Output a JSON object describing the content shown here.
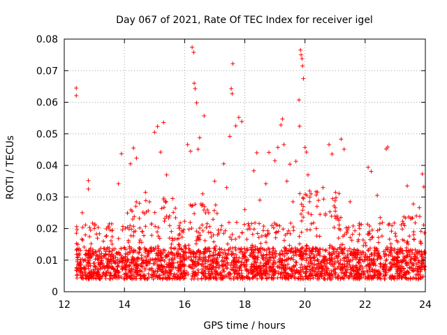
{
  "chart_data": {
    "type": "scatter",
    "title": "Day 067 of 2021, Rate Of TEC Index for receiver igel",
    "xlabel": "GPS time / hours",
    "ylabel": "ROTI / TECUs",
    "xlim": [
      12,
      24
    ],
    "ylim": [
      0,
      0.08
    ],
    "x_ticks": [
      12,
      14,
      16,
      18,
      20,
      22,
      24
    ],
    "x_tick_labels": [
      "12",
      "14",
      "16",
      "18",
      "20",
      "22",
      "24"
    ],
    "y_ticks": [
      0,
      0.01,
      0.02,
      0.03,
      0.04,
      0.05,
      0.06,
      0.07,
      0.08
    ],
    "y_tick_labels": [
      "0",
      "0.01",
      "0.02",
      "0.03",
      "0.04",
      "0.05",
      "0.06",
      "0.07",
      "0.08"
    ],
    "grid": true,
    "marker": "+",
    "color": "#ff0000",
    "series": [
      {
        "name": "ROTI",
        "points": [
          [
            12.4,
            0.0645
          ],
          [
            12.4,
            0.0621
          ],
          [
            12.45,
            0.015
          ],
          [
            12.5,
            0.012
          ],
          [
            12.6,
            0.025
          ],
          [
            12.7,
            0.018
          ],
          [
            12.8,
            0.0352
          ],
          [
            12.8,
            0.0325
          ],
          [
            12.9,
            0.011
          ],
          [
            13.0,
            0.02
          ],
          [
            13.2,
            0.009
          ],
          [
            13.3,
            0.016
          ],
          [
            13.5,
            0.0215
          ],
          [
            13.6,
            0.013
          ],
          [
            13.8,
            0.0342
          ],
          [
            13.9,
            0.0437
          ],
          [
            14.0,
            0.014
          ],
          [
            14.1,
            0.0249
          ],
          [
            14.2,
            0.0405
          ],
          [
            14.3,
            0.0455
          ],
          [
            14.4,
            0.0423
          ],
          [
            14.5,
            0.028
          ],
          [
            14.6,
            0.019
          ],
          [
            14.7,
            0.0315
          ],
          [
            14.8,
            0.012
          ],
          [
            15.0,
            0.0505
          ],
          [
            15.1,
            0.0523
          ],
          [
            15.2,
            0.0442
          ],
          [
            15.3,
            0.0536
          ],
          [
            15.4,
            0.037
          ],
          [
            15.5,
            0.024
          ],
          [
            15.6,
            0.0295
          ],
          [
            15.8,
            0.015
          ],
          [
            16.0,
            0.0223
          ],
          [
            16.1,
            0.0466
          ],
          [
            16.2,
            0.0445
          ],
          [
            16.25,
            0.0774
          ],
          [
            16.3,
            0.0758
          ],
          [
            16.32,
            0.066
          ],
          [
            16.35,
            0.0643
          ],
          [
            16.4,
            0.0598
          ],
          [
            16.45,
            0.0451
          ],
          [
            16.5,
            0.0488
          ],
          [
            16.6,
            0.031
          ],
          [
            16.65,
            0.0557
          ],
          [
            16.8,
            0.025
          ],
          [
            17.0,
            0.035
          ],
          [
            17.1,
            0.018
          ],
          [
            17.3,
            0.0405
          ],
          [
            17.4,
            0.033
          ],
          [
            17.5,
            0.0492
          ],
          [
            17.55,
            0.0643
          ],
          [
            17.58,
            0.0627
          ],
          [
            17.6,
            0.0722
          ],
          [
            17.7,
            0.0525
          ],
          [
            17.8,
            0.0552
          ],
          [
            17.9,
            0.0539
          ],
          [
            18.0,
            0.026
          ],
          [
            18.2,
            0.014
          ],
          [
            18.3,
            0.0383
          ],
          [
            18.4,
            0.044
          ],
          [
            18.5,
            0.029
          ],
          [
            18.7,
            0.0342
          ],
          [
            18.8,
            0.0441
          ],
          [
            18.9,
            0.021
          ],
          [
            19.0,
            0.0415
          ],
          [
            19.1,
            0.0457
          ],
          [
            19.2,
            0.0528
          ],
          [
            19.25,
            0.0547
          ],
          [
            19.3,
            0.0466
          ],
          [
            19.4,
            0.035
          ],
          [
            19.5,
            0.0404
          ],
          [
            19.6,
            0.0285
          ],
          [
            19.7,
            0.0413
          ],
          [
            19.8,
            0.0607
          ],
          [
            19.82,
            0.0524
          ],
          [
            19.85,
            0.0765
          ],
          [
            19.87,
            0.075
          ],
          [
            19.9,
            0.0738
          ],
          [
            19.92,
            0.0715
          ],
          [
            19.95,
            0.0675
          ],
          [
            20.0,
            0.0457
          ],
          [
            20.05,
            0.0442
          ],
          [
            20.1,
            0.037
          ],
          [
            20.2,
            0.031
          ],
          [
            20.4,
            0.027
          ],
          [
            20.5,
            0.0245
          ],
          [
            20.6,
            0.033
          ],
          [
            20.8,
            0.0466
          ],
          [
            20.9,
            0.0436
          ],
          [
            21.0,
            0.0288
          ],
          [
            21.2,
            0.0483
          ],
          [
            21.3,
            0.0451
          ],
          [
            21.5,
            0.0285
          ],
          [
            21.6,
            0.0208
          ],
          [
            21.8,
            0.021
          ],
          [
            22.0,
            0.0155
          ],
          [
            22.1,
            0.0394
          ],
          [
            22.2,
            0.0381
          ],
          [
            22.4,
            0.0305
          ],
          [
            22.5,
            0.0235
          ],
          [
            22.7,
            0.0452
          ],
          [
            22.75,
            0.0458
          ],
          [
            22.8,
            0.0215
          ],
          [
            23.0,
            0.0185
          ],
          [
            23.2,
            0.0212
          ],
          [
            23.4,
            0.0335
          ],
          [
            23.5,
            0.0232
          ],
          [
            23.6,
            0.0278
          ],
          [
            23.7,
            0.024
          ],
          [
            23.8,
            0.0266
          ],
          [
            23.9,
            0.0373
          ],
          [
            23.95,
            0.0332
          ]
        ]
      }
    ],
    "dense_band": {
      "description": "baseline cloud of points",
      "x_range": [
        12.4,
        24
      ],
      "y_core": [
        0.004,
        0.022
      ],
      "y_median": 0.01
    }
  }
}
